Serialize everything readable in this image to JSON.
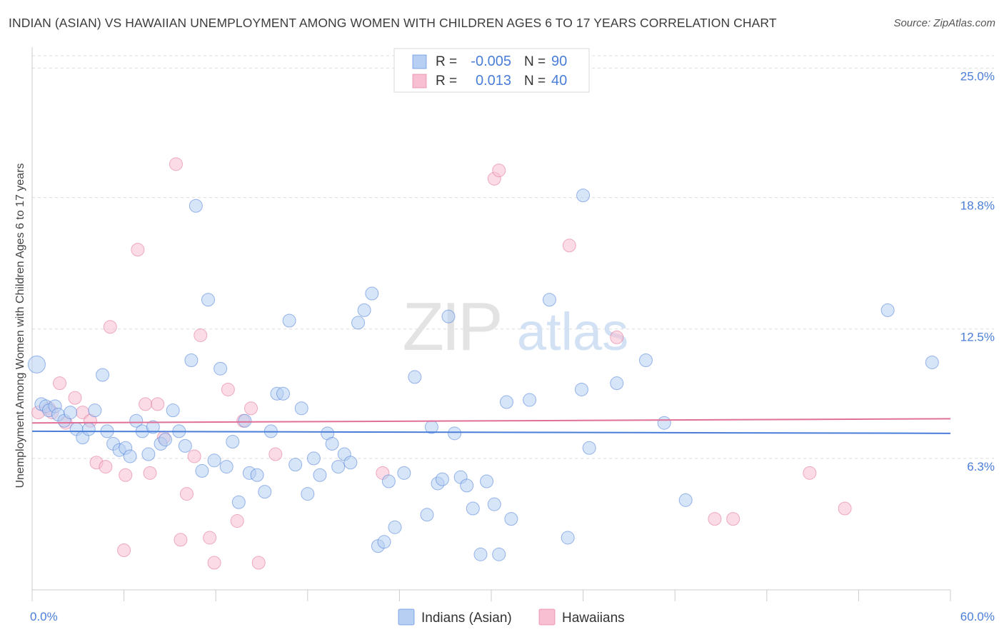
{
  "title": "INDIAN (ASIAN) VS HAWAIIAN UNEMPLOYMENT AMONG WOMEN WITH CHILDREN AGES 6 TO 17 YEARS CORRELATION CHART",
  "source": "Source: ZipAtlas.com",
  "watermark": {
    "zip": "ZIP",
    "atlas": "atlas"
  },
  "colors": {
    "blue": "#4a7ed8",
    "blue_fill": "#b7cff2",
    "pink": "#e07098",
    "pink_fill": "#f7bfd1",
    "axis_text": "#4a7ed8"
  },
  "legend_top": [
    {
      "r_label": "R =",
      "r_value": "-0.005",
      "n_label": "N =",
      "n_value": "90"
    },
    {
      "r_label": "R =",
      "r_value": "0.013",
      "n_label": "N =",
      "n_value": "40"
    }
  ],
  "chart_data": {
    "type": "scatter",
    "title": "INDIAN (ASIAN) VS HAWAIIAN UNEMPLOYMENT AMONG WOMEN WITH CHILDREN AGES 6 TO 17 YEARS CORRELATION CHART",
    "xlabel": "",
    "ylabel": "Unemployment Among Women with Children Ages 6 to 17 years",
    "xlim": [
      0,
      60
    ],
    "ylim": [
      0,
      25.8
    ],
    "x_tick_labels": [
      "0.0%",
      "60.0%"
    ],
    "y_tick_labels": [
      "6.3%",
      "12.5%",
      "18.8%",
      "25.0%"
    ],
    "y_ticks": [
      6.3,
      12.5,
      18.8,
      25.0
    ],
    "grid": true,
    "legend_position": "bottom-center",
    "series": [
      {
        "name": "Indians (Asian)",
        "color": "#4a7ed8",
        "trend": [
          [
            0,
            7.6
          ],
          [
            60,
            7.5
          ]
        ],
        "points": [
          [
            0.3,
            10.8
          ],
          [
            0.6,
            8.9
          ],
          [
            0.9,
            8.8
          ],
          [
            1.1,
            8.6
          ],
          [
            1.5,
            8.8
          ],
          [
            1.7,
            8.4
          ],
          [
            2.1,
            8.1
          ],
          [
            2.5,
            8.5
          ],
          [
            2.9,
            7.7
          ],
          [
            3.3,
            7.3
          ],
          [
            3.7,
            7.7
          ],
          [
            4.1,
            8.6
          ],
          [
            4.6,
            10.3
          ],
          [
            4.9,
            7.6
          ],
          [
            5.3,
            7.0
          ],
          [
            5.7,
            6.7
          ],
          [
            6.1,
            6.8
          ],
          [
            6.4,
            6.4
          ],
          [
            6.8,
            8.1
          ],
          [
            7.2,
            7.6
          ],
          [
            7.6,
            6.5
          ],
          [
            7.9,
            7.8
          ],
          [
            8.4,
            7.0
          ],
          [
            8.7,
            7.2
          ],
          [
            9.2,
            8.6
          ],
          [
            9.6,
            7.6
          ],
          [
            10.0,
            6.9
          ],
          [
            10.4,
            11.0
          ],
          [
            10.7,
            18.4
          ],
          [
            11.1,
            5.7
          ],
          [
            11.5,
            13.9
          ],
          [
            11.9,
            6.2
          ],
          [
            12.3,
            10.6
          ],
          [
            12.7,
            5.9
          ],
          [
            13.1,
            7.1
          ],
          [
            13.5,
            4.2
          ],
          [
            13.9,
            8.1
          ],
          [
            14.2,
            5.6
          ],
          [
            14.7,
            5.5
          ],
          [
            15.2,
            4.7
          ],
          [
            15.6,
            7.6
          ],
          [
            16.0,
            9.4
          ],
          [
            16.4,
            9.4
          ],
          [
            16.8,
            12.9
          ],
          [
            17.2,
            6.0
          ],
          [
            17.6,
            8.7
          ],
          [
            18.0,
            4.6
          ],
          [
            18.4,
            6.3
          ],
          [
            18.8,
            5.5
          ],
          [
            19.3,
            7.5
          ],
          [
            19.6,
            7.0
          ],
          [
            20.0,
            5.9
          ],
          [
            20.4,
            6.5
          ],
          [
            20.8,
            6.1
          ],
          [
            21.3,
            12.8
          ],
          [
            21.7,
            13.4
          ],
          [
            22.2,
            14.2
          ],
          [
            22.6,
            2.1
          ],
          [
            23.0,
            2.3
          ],
          [
            23.3,
            5.2
          ],
          [
            23.7,
            3.0
          ],
          [
            24.3,
            5.6
          ],
          [
            25.0,
            10.2
          ],
          [
            25.8,
            3.6
          ],
          [
            26.1,
            7.8
          ],
          [
            26.5,
            5.1
          ],
          [
            26.8,
            5.3
          ],
          [
            27.2,
            13.1
          ],
          [
            27.6,
            7.5
          ],
          [
            28.0,
            5.4
          ],
          [
            28.4,
            5.0
          ],
          [
            28.8,
            3.9
          ],
          [
            29.3,
            1.7
          ],
          [
            29.7,
            5.2
          ],
          [
            30.2,
            4.1
          ],
          [
            30.5,
            1.7
          ],
          [
            31.0,
            9.0
          ],
          [
            31.3,
            3.4
          ],
          [
            32.5,
            9.1
          ],
          [
            33.8,
            13.9
          ],
          [
            35.0,
            2.5
          ],
          [
            35.9,
            9.6
          ],
          [
            36.0,
            18.9
          ],
          [
            36.4,
            6.8
          ],
          [
            38.2,
            9.9
          ],
          [
            40.1,
            11.0
          ],
          [
            41.3,
            8.0
          ],
          [
            42.7,
            4.3
          ],
          [
            55.9,
            13.4
          ],
          [
            58.8,
            10.9
          ]
        ]
      },
      {
        "name": "Hawaiians",
        "color": "#e07098",
        "trend": [
          [
            0,
            8.0
          ],
          [
            60,
            8.2
          ]
        ],
        "points": [
          [
            0.4,
            8.5
          ],
          [
            1.1,
            8.7
          ],
          [
            1.3,
            8.5
          ],
          [
            1.8,
            9.9
          ],
          [
            2.2,
            8.0
          ],
          [
            2.8,
            9.2
          ],
          [
            3.3,
            8.5
          ],
          [
            3.8,
            8.1
          ],
          [
            4.2,
            6.1
          ],
          [
            4.8,
            5.9
          ],
          [
            5.1,
            12.6
          ],
          [
            6.0,
            1.9
          ],
          [
            6.1,
            5.5
          ],
          [
            6.9,
            16.3
          ],
          [
            7.4,
            8.9
          ],
          [
            7.7,
            5.6
          ],
          [
            8.2,
            8.9
          ],
          [
            8.6,
            7.3
          ],
          [
            9.4,
            20.4
          ],
          [
            9.7,
            2.4
          ],
          [
            10.1,
            4.6
          ],
          [
            10.6,
            6.4
          ],
          [
            11.0,
            12.2
          ],
          [
            11.6,
            2.5
          ],
          [
            11.9,
            1.3
          ],
          [
            12.8,
            9.6
          ],
          [
            13.4,
            3.3
          ],
          [
            13.8,
            8.1
          ],
          [
            14.3,
            8.7
          ],
          [
            14.8,
            1.3
          ],
          [
            15.9,
            6.5
          ],
          [
            22.9,
            5.6
          ],
          [
            30.2,
            19.7
          ],
          [
            30.5,
            20.1
          ],
          [
            35.1,
            16.5
          ],
          [
            38.2,
            12.1
          ],
          [
            44.6,
            3.4
          ],
          [
            45.8,
            3.4
          ],
          [
            50.8,
            5.6
          ],
          [
            53.1,
            3.9
          ]
        ]
      }
    ]
  },
  "legend_bottom": [
    {
      "label": "Indians (Asian)"
    },
    {
      "label": "Hawaiians"
    }
  ]
}
